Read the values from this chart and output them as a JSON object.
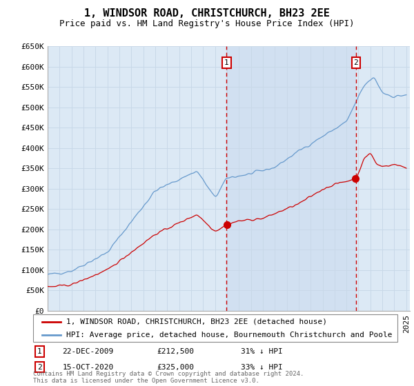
{
  "title": "1, WINDSOR ROAD, CHRISTCHURCH, BH23 2EE",
  "subtitle": "Price paid vs. HM Land Registry's House Price Index (HPI)",
  "background_color": "#ffffff",
  "plot_bg_color": "#dce9f5",
  "grid_color": "#c8d8e8",
  "red_line_color": "#cc0000",
  "blue_line_color": "#6699cc",
  "vline_color": "#cc0000",
  "highlight_color": "#c8d8ee",
  "marker1_x": 2009.97,
  "marker2_x": 2020.79,
  "marker1_label": "1",
  "marker2_label": "2",
  "sale1_value": 212500,
  "sale2_value": 325000,
  "legend_label_red": "1, WINDSOR ROAD, CHRISTCHURCH, BH23 2EE (detached house)",
  "legend_label_blue": "HPI: Average price, detached house, Bournemouth Christchurch and Poole",
  "annotation1_date": "22-DEC-2009",
  "annotation1_price": "£212,500",
  "annotation1_hpi": "31% ↓ HPI",
  "annotation2_date": "15-OCT-2020",
  "annotation2_price": "£325,000",
  "annotation2_hpi": "33% ↓ HPI",
  "footnote": "Contains HM Land Registry data © Crown copyright and database right 2024.\nThis data is licensed under the Open Government Licence v3.0.",
  "title_fontsize": 11,
  "subtitle_fontsize": 9,
  "tick_fontsize": 8,
  "legend_fontsize": 8,
  "annot_fontsize": 8
}
